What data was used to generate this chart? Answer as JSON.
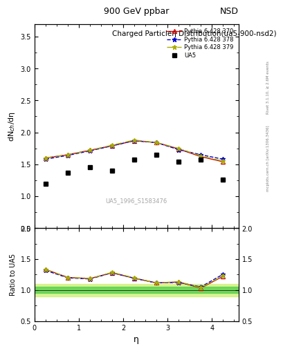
{
  "title_top": "900 GeV ppbar",
  "title_right": "NSD",
  "plot_title": "Charged Particleη Distribution",
  "plot_subtitle": "(ua5-900-nsd2)",
  "watermark": "UA5_1996_S1583476",
  "right_label": "Rivet 3.1.10, ≥ 2.6M events",
  "right_label2": "mcplots.cern.ch [arXiv:1306.3436]",
  "ylabel_main": "dN$_{ch}$/dη",
  "ylabel_ratio": "Ratio to UA5",
  "xlabel": "η",
  "xlim": [
    0,
    4.6
  ],
  "ylim_main": [
    0.5,
    3.7
  ],
  "ylim_ratio": [
    0.5,
    2.0
  ],
  "ua5_x": [
    0.25,
    0.75,
    1.25,
    1.75,
    2.25,
    2.75,
    3.25,
    3.75,
    4.25
  ],
  "ua5_y": [
    1.2,
    1.37,
    1.45,
    1.4,
    1.57,
    1.65,
    1.54,
    1.57,
    1.26
  ],
  "pythia370_x": [
    0.25,
    0.75,
    1.25,
    1.75,
    2.25,
    2.75,
    3.25,
    3.75,
    4.25
  ],
  "pythia370_y": [
    1.6,
    1.65,
    1.72,
    1.79,
    1.87,
    1.84,
    1.74,
    1.62,
    1.54
  ],
  "pythia378_x": [
    0.25,
    0.75,
    1.25,
    1.75,
    2.25,
    2.75,
    3.25,
    3.75,
    4.25
  ],
  "pythia378_y": [
    1.58,
    1.64,
    1.71,
    1.79,
    1.87,
    1.84,
    1.73,
    1.65,
    1.58
  ],
  "pythia379_x": [
    0.25,
    0.75,
    1.25,
    1.75,
    2.25,
    2.75,
    3.25,
    3.75,
    4.25
  ],
  "pythia379_y": [
    1.6,
    1.65,
    1.72,
    1.8,
    1.88,
    1.84,
    1.75,
    1.63,
    1.55
  ],
  "ratio370_y": [
    1.333,
    1.204,
    1.186,
    1.279,
    1.191,
    1.115,
    1.13,
    1.032,
    1.222
  ],
  "ratio378_y": [
    1.317,
    1.197,
    1.179,
    1.279,
    1.191,
    1.115,
    1.123,
    1.051,
    1.254
  ],
  "ratio379_y": [
    1.333,
    1.204,
    1.186,
    1.286,
    1.197,
    1.115,
    1.136,
    1.038,
    1.23
  ],
  "color370": "#cc0000",
  "color378": "#0000cc",
  "color379": "#aaaa00",
  "ua5_color": "#000000",
  "band_green_inner": 0.05,
  "band_yellow_outer": 0.1,
  "xticks": [
    0,
    1,
    2,
    3,
    4
  ],
  "yticks_main": [
    0.5,
    1.0,
    1.5,
    2.0,
    2.5,
    3.0,
    3.5
  ],
  "yticks_ratio": [
    0.5,
    1.0,
    1.5,
    2.0
  ]
}
